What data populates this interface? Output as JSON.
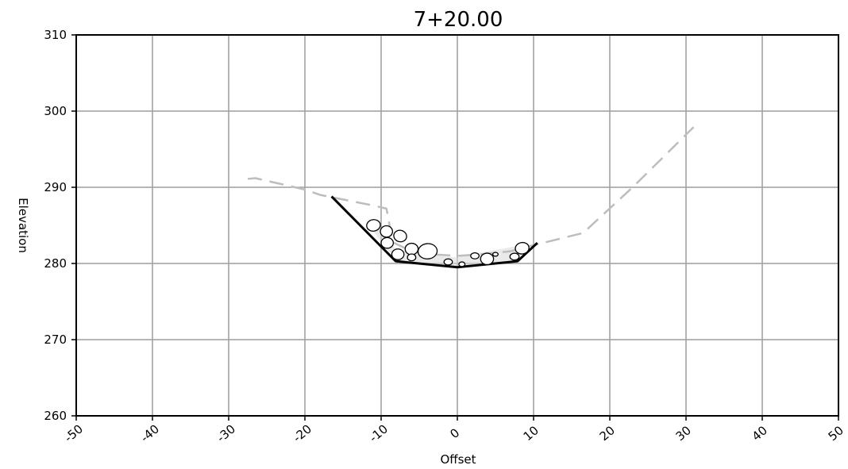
{
  "chart_data": {
    "type": "line",
    "title": "7+20.00",
    "xlabel": "Offset",
    "ylabel": "Elevation",
    "xlim": [
      -50,
      50
    ],
    "ylim": [
      260,
      310
    ],
    "xticks": [
      -50,
      -40,
      -30,
      -20,
      -10,
      0,
      10,
      20,
      30,
      40,
      50
    ],
    "yticks": [
      260,
      270,
      280,
      290,
      300,
      310
    ],
    "grid": true,
    "series": [
      {
        "style": "dashed",
        "color": "#bdbdbd",
        "x": [
          -27.5,
          -26.5,
          -20,
          -18,
          -11,
          -9.3,
          -9,
          -8.5,
          -6,
          -3.5,
          0,
          3,
          7,
          10,
          16.5,
          23,
          31
        ],
        "y": [
          291.1,
          291.2,
          289.7,
          289.0,
          287.6,
          287.2,
          285.6,
          282.8,
          281.6,
          281.2,
          281.0,
          281.2,
          281.6,
          282.4,
          284.0,
          290.0,
          297.9
        ]
      },
      {
        "style": "solid",
        "color": "#000000",
        "x": [
          -16.5,
          -8.1,
          0,
          7.9,
          10.5
        ],
        "y": [
          288.8,
          280.3,
          279.5,
          280.3,
          282.7
        ]
      }
    ],
    "riprap": [
      {
        "x": -11,
        "y": 285,
        "rx": 0.9,
        "ry": 0.75,
        "rot": -10
      },
      {
        "x": -9.3,
        "y": 284.2,
        "rx": 0.8,
        "ry": 0.75,
        "rot": 0
      },
      {
        "x": -7.5,
        "y": 283.6,
        "rx": 0.85,
        "ry": 0.75,
        "rot": 15
      },
      {
        "x": -9.2,
        "y": 282.7,
        "rx": 0.8,
        "ry": 0.7,
        "rot": 0
      },
      {
        "x": -6,
        "y": 281.9,
        "rx": 0.85,
        "ry": 0.75,
        "rot": 0
      },
      {
        "x": -3.9,
        "y": 281.6,
        "rx": 1.25,
        "ry": 1.0,
        "rot": -5
      },
      {
        "x": -7.8,
        "y": 281.2,
        "rx": 0.8,
        "ry": 0.7,
        "rot": 0
      },
      {
        "x": -6,
        "y": 280.8,
        "rx": 0.55,
        "ry": 0.45,
        "rot": 0
      },
      {
        "x": -1.2,
        "y": 280.2,
        "rx": 0.55,
        "ry": 0.4,
        "rot": 0
      },
      {
        "x": 0.6,
        "y": 279.9,
        "rx": 0.4,
        "ry": 0.3,
        "rot": 0
      },
      {
        "x": 2.3,
        "y": 281.0,
        "rx": 0.55,
        "ry": 0.4,
        "rot": 0
      },
      {
        "x": 3.9,
        "y": 280.6,
        "rx": 0.85,
        "ry": 0.75,
        "rot": 0
      },
      {
        "x": 5,
        "y": 281.2,
        "rx": 0.35,
        "ry": 0.25,
        "rot": 0
      },
      {
        "x": 7.5,
        "y": 280.9,
        "rx": 0.6,
        "ry": 0.45,
        "rot": 0
      },
      {
        "x": 8.5,
        "y": 282.0,
        "rx": 0.9,
        "ry": 0.75,
        "rot": -10
      }
    ],
    "colors": {
      "grid": "#9e9e9e",
      "existing_ground": "#bdbdbd",
      "channel": "#000000",
      "riprap_fill": "#d9d9d9"
    }
  }
}
